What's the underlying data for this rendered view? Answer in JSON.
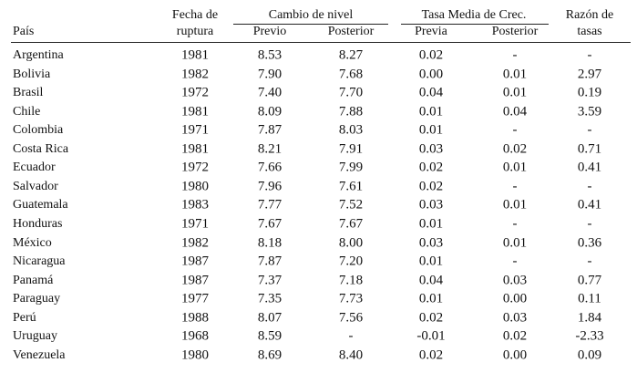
{
  "header": {
    "group_row": [
      "Fecha de",
      "Cambio de nivel",
      "Tasa Media de Crec.",
      "Razón de"
    ],
    "columns": [
      "País",
      "ruptura",
      "Previo",
      "Posterior",
      "Previa",
      "Posterior",
      "tasas"
    ]
  },
  "table": {
    "rows": [
      [
        "Argentina",
        "1981",
        "8.53",
        "8.27",
        "0.02",
        "-",
        "-"
      ],
      [
        "Bolivia",
        "1982",
        "7.90",
        "7.68",
        "0.00",
        "0.01",
        "2.97"
      ],
      [
        "Brasil",
        "1972",
        "7.40",
        "7.70",
        "0.04",
        "0.01",
        "0.19"
      ],
      [
        "Chile",
        "1981",
        "8.09",
        "7.88",
        "0.01",
        "0.04",
        "3.59"
      ],
      [
        "Colombia",
        "1971",
        "7.87",
        "8.03",
        "0.01",
        "-",
        "-"
      ],
      [
        "Costa Rica",
        "1981",
        "8.21",
        "7.91",
        "0.03",
        "0.02",
        "0.71"
      ],
      [
        "Ecuador",
        "1972",
        "7.66",
        "7.99",
        "0.02",
        "0.01",
        "0.41"
      ],
      [
        "Salvador",
        "1980",
        "7.96",
        "7.61",
        "0.02",
        "-",
        "-"
      ],
      [
        "Guatemala",
        "1983",
        "7.77",
        "7.52",
        "0.03",
        "0.01",
        "0.41"
      ],
      [
        "Honduras",
        "1971",
        "7.67",
        "7.67",
        "0.01",
        "-",
        "-"
      ],
      [
        "México",
        "1982",
        "8.18",
        "8.00",
        "0.03",
        "0.01",
        "0.36"
      ],
      [
        "Nicaragua",
        "1987",
        "7.87",
        "7.20",
        "0.01",
        "-",
        "-"
      ],
      [
        "Panamá",
        "1987",
        "7.37",
        "7.18",
        "0.04",
        "0.03",
        "0.77"
      ],
      [
        "Paraguay",
        "1977",
        "7.35",
        "7.73",
        "0.01",
        "0.00",
        "0.11"
      ],
      [
        "Perú",
        "1988",
        "8.07",
        "7.56",
        "0.02",
        "0.03",
        "1.84"
      ],
      [
        "Uruguay",
        "1968",
        "8.59",
        "-",
        "-0.01",
        "0.02",
        "-2.33"
      ],
      [
        "Venezuela",
        "1980",
        "8.69",
        "8.40",
        "0.02",
        "0.00",
        "0.09"
      ]
    ]
  }
}
